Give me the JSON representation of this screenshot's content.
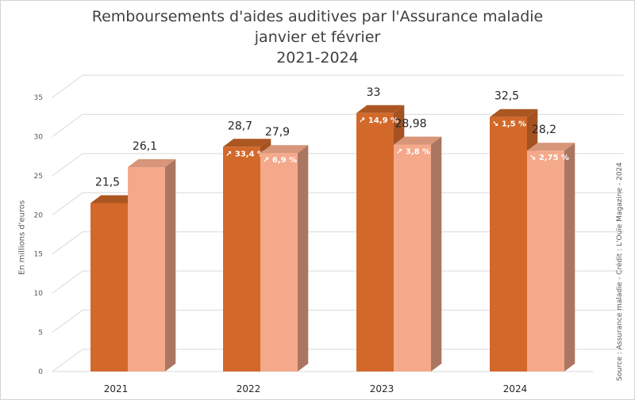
{
  "chart_data": {
    "type": "bar",
    "title_lines": [
      "Remboursements d'aides auditives par l'Assurance maladie",
      "janvier et février",
      "2021-2024"
    ],
    "ylabel": "En millions d'euros",
    "source": "Source : Assurance maladie - Crédit : L'Ouïe Magazine - 2024",
    "ylim": [
      0,
      35
    ],
    "yticks": [
      "0",
      "5",
      "10",
      "15",
      "20",
      "25",
      "30",
      "35"
    ],
    "categories": [
      "2021",
      "2022",
      "2023",
      "2024"
    ],
    "series": [
      {
        "values": [
          21.5,
          28.7,
          33,
          32.5
        ],
        "labels": [
          "21,5",
          "28,7",
          "33",
          "32,5"
        ],
        "changes": [
          "",
          "↗ 33,4 %",
          "↗ 14,9 %",
          "↘ 1,5 %"
        ],
        "color": "#d2692a"
      },
      {
        "values": [
          26.1,
          27.9,
          28.98,
          28.2
        ],
        "labels": [
          "26,1",
          "27,9",
          "28,98",
          "28,2"
        ],
        "changes": [
          "",
          "↗ 6,9 %",
          "↗ 3,8 %",
          "↘ 2,75 %"
        ],
        "color": "#f4a98a"
      }
    ],
    "grid": true
  }
}
